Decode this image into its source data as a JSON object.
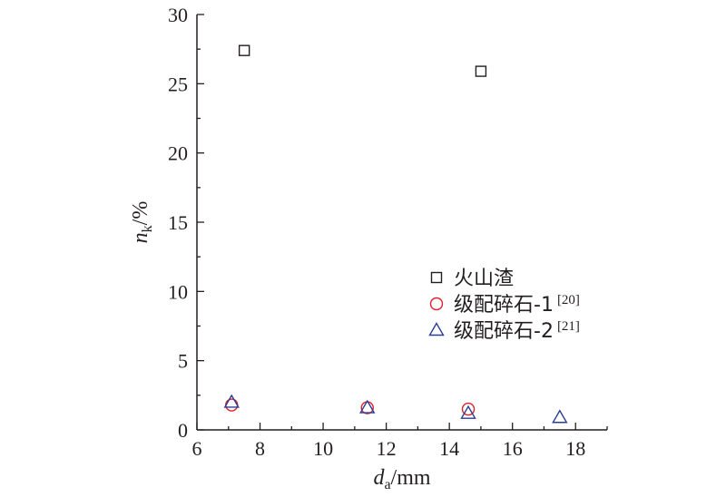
{
  "chart_data": {
    "type": "scatter",
    "xlabel_main": "d",
    "xlabel_sub": "a",
    "xlabel_unit": "/mm",
    "ylabel_main": "n",
    "ylabel_sub": "k",
    "ylabel_unit": "/%",
    "xlim": [
      6,
      19
    ],
    "ylim": [
      0,
      30
    ],
    "xticks": [
      6,
      8,
      10,
      12,
      14,
      16,
      18
    ],
    "yticks": [
      0,
      5,
      10,
      15,
      20,
      25,
      30
    ],
    "grid": false,
    "legend_position": "right",
    "series": [
      {
        "name": "火山渣",
        "ref": "",
        "marker": "square",
        "color": "#231f20",
        "points": [
          [
            7.5,
            27.4
          ],
          [
            15.0,
            25.9
          ]
        ]
      },
      {
        "name": "级配碎石-1",
        "ref": "[20]",
        "marker": "circle",
        "color": "#e0202a",
        "points": [
          [
            7.1,
            1.8
          ],
          [
            11.4,
            1.6
          ],
          [
            14.6,
            1.5
          ]
        ]
      },
      {
        "name": "级配碎石-2",
        "ref": "[21]",
        "marker": "triangle",
        "color": "#2a3d91",
        "points": [
          [
            7.1,
            2.0
          ],
          [
            11.4,
            1.6
          ],
          [
            14.6,
            1.2
          ],
          [
            17.5,
            0.9
          ]
        ]
      }
    ]
  }
}
